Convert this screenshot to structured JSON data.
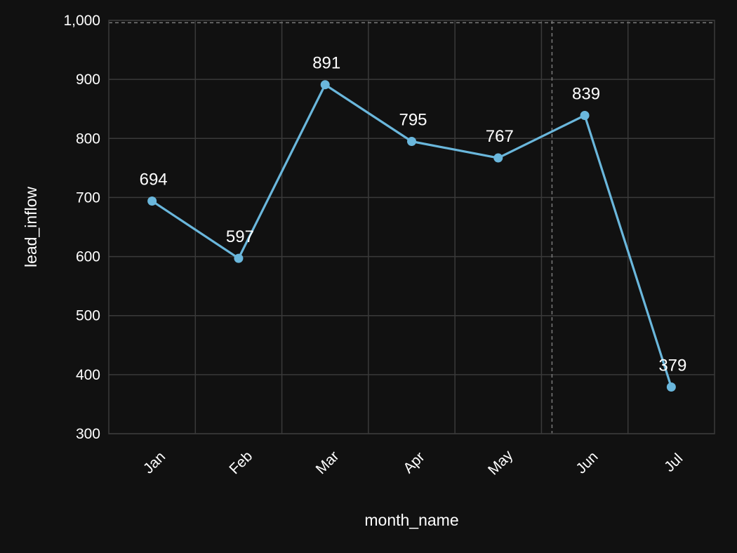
{
  "chart_data": {
    "type": "line",
    "title": "",
    "xlabel": "month_name",
    "ylabel": "lead_inflow",
    "categories": [
      "Jan",
      "Feb",
      "Mar",
      "Apr",
      "May",
      "Jun",
      "Jul"
    ],
    "series": [
      {
        "values": [
          694,
          597,
          891,
          795,
          767,
          839,
          379
        ]
      }
    ],
    "ylim": [
      300,
      1000
    ],
    "yticks": [
      300,
      400,
      500,
      600,
      700,
      800,
      900,
      1000
    ],
    "ytick_labels": [
      "300",
      "400",
      "500",
      "600",
      "700",
      "800",
      "900",
      "1,000"
    ],
    "reference_lines": [
      {
        "axis": "y",
        "value": 996,
        "style": "dashed"
      },
      {
        "axis": "x",
        "between": [
          "May",
          "Jun"
        ],
        "style": "dashed"
      }
    ],
    "grid": true,
    "legend": "none",
    "data_labels": true,
    "colors": {
      "background": "#111111",
      "line": "#6ab7dc",
      "grid": "#3a3a3a",
      "reference": "#7a7a7a",
      "text": "#ffffff"
    }
  }
}
